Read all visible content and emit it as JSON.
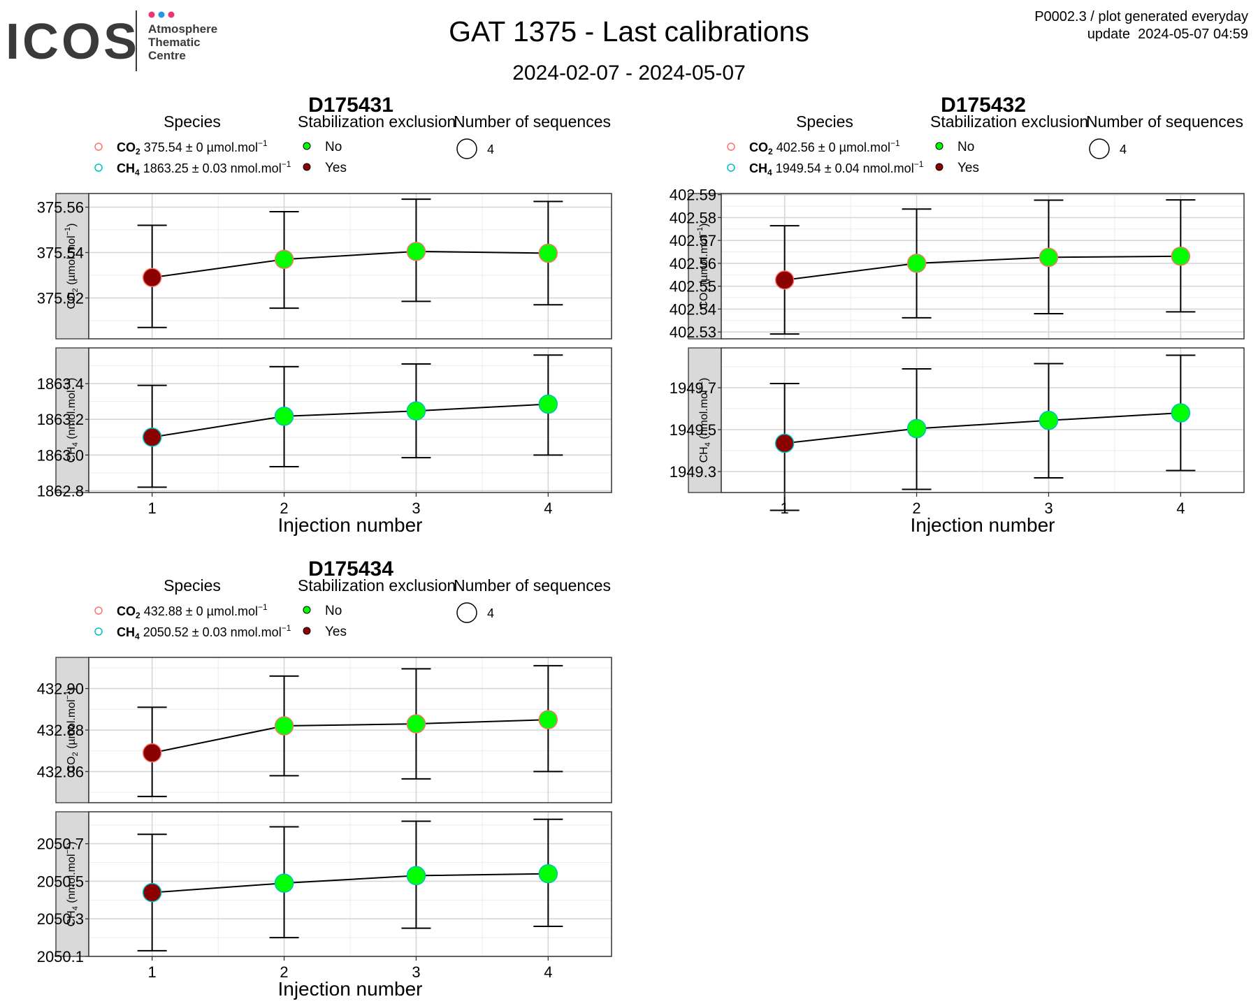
{
  "logo": {
    "wordmark": "ICOS",
    "line1": "Atmosphere",
    "line2": "Thematic",
    "line3": "Centre",
    "dot_colors": [
      "#e8386d",
      "#1e9be0",
      "#e8386d"
    ]
  },
  "header": {
    "title": "GAT 1375 - Last calibrations",
    "daterange": "2024-02-07 - 2024-05-07",
    "meta_line1": "P0002.3 / plot generated everyday",
    "meta_line2": "update  2024-05-07 04:59"
  },
  "legend_labels": {
    "species": "Species",
    "stab": "Stabilization exclusion",
    "nseq": "Number of sequences",
    "no": "No",
    "yes": "Yes",
    "nseq_value": "4"
  },
  "colors": {
    "co2_ring": "#f8766d",
    "ch4_ring": "#00bfc4",
    "no_fill": "#00ff00",
    "yes_fill": "#8b0000",
    "strip_bg": "#d9d9d9"
  },
  "chart_data": [
    {
      "type": "scatter",
      "title": "D175431",
      "xlabel": "Injection number",
      "x": [
        1,
        2,
        3,
        4
      ],
      "legend": {
        "co2_bold": "CO",
        "co2_text": "375.54 ± 0 µmol.mol",
        "ch4_bold": "CH",
        "ch4_text": "1863.25 ± 0.03 nmol.mol"
      },
      "panels": [
        {
          "species": "CO2",
          "strip": "CO",
          "strip_unit": "(µmol.mol",
          "ylim": [
            375.502,
            375.566
          ],
          "yticks": [
            375.52,
            375.54,
            375.56
          ],
          "ytick_labels": [
            "375.52",
            "375.54",
            "375.56"
          ],
          "values": [
            375.529,
            375.537,
            375.5405,
            375.5397
          ],
          "err_low": [
            375.507,
            375.5155,
            375.5185,
            375.517
          ],
          "err_high": [
            375.552,
            375.558,
            375.5635,
            375.5625
          ],
          "excluded": [
            true,
            false,
            false,
            false
          ]
        },
        {
          "species": "CH4",
          "strip": "CH",
          "strip_unit": "(nmol.mol",
          "ylim": [
            1862.79,
            1863.6
          ],
          "yticks": [
            1862.8,
            1863.0,
            1863.2,
            1863.4
          ],
          "ytick_labels": [
            "1862.8",
            "1863.0",
            "1863.2",
            "1863.4"
          ],
          "values": [
            1863.1,
            1863.217,
            1863.247,
            1863.285
          ],
          "err_low": [
            1862.82,
            1862.935,
            1862.985,
            1863.0
          ],
          "err_high": [
            1863.39,
            1863.495,
            1863.51,
            1863.56
          ],
          "excluded": [
            true,
            false,
            false,
            false
          ]
        }
      ]
    },
    {
      "type": "scatter",
      "title": "D175432",
      "xlabel": "Injection number",
      "x": [
        1,
        2,
        3,
        4
      ],
      "legend": {
        "co2_bold": "CO",
        "co2_text": "402.56 ± 0 µmol.mol",
        "ch4_bold": "CH",
        "ch4_text": "1949.54 ± 0.04 nmol.mol"
      },
      "panels": [
        {
          "species": "CO2",
          "strip": "CO",
          "strip_unit": "(µmol.mol",
          "ylim": [
            402.527,
            402.5905
          ],
          "yticks": [
            402.53,
            402.54,
            402.55,
            402.56,
            402.57,
            402.58,
            402.59
          ],
          "ytick_labels": [
            "402.53",
            "402.54",
            "402.55",
            "402.56",
            "402.57",
            "402.58",
            "402.59"
          ],
          "values": [
            402.5527,
            402.56,
            402.5626,
            402.5631
          ],
          "err_low": [
            402.5291,
            402.5362,
            402.538,
            402.5388
          ],
          "err_high": [
            402.5764,
            402.5837,
            402.5876,
            402.5877
          ],
          "excluded": [
            true,
            false,
            false,
            false
          ]
        },
        {
          "species": "CH4",
          "strip": "CH",
          "strip_unit": "(nmol.mol",
          "ylim": [
            1949.2,
            1949.89
          ],
          "yticks": [
            1949.3,
            1949.5,
            1949.7
          ],
          "ytick_labels": [
            "1949.3",
            "1949.5",
            "1949.7"
          ],
          "values": [
            1949.435,
            1949.505,
            1949.544,
            1949.58
          ],
          "err_low": [
            1949.115,
            1949.215,
            1949.27,
            1949.305
          ],
          "err_high": [
            1949.72,
            1949.79,
            1949.815,
            1949.855
          ],
          "excluded": [
            true,
            false,
            false,
            false
          ]
        }
      ]
    },
    {
      "type": "scatter",
      "title": "D175434",
      "xlabel": "Injection number",
      "x": [
        1,
        2,
        3,
        4
      ],
      "legend": {
        "co2_bold": "CO",
        "co2_text": "432.88 ± 0 µmol.mol",
        "ch4_bold": "CH",
        "ch4_text": "2050.52 ± 0.03 nmol.mol"
      },
      "panels": [
        {
          "species": "CO2",
          "strip": "CO",
          "strip_unit": "(µmol.mol",
          "ylim": [
            432.845,
            432.915
          ],
          "yticks": [
            432.86,
            432.88,
            432.9
          ],
          "ytick_labels": [
            "432.86",
            "432.88",
            "432.90"
          ],
          "values": [
            432.869,
            432.882,
            432.883,
            432.885
          ],
          "err_low": [
            432.848,
            432.858,
            432.8565,
            432.86
          ],
          "err_high": [
            432.891,
            432.906,
            432.9095,
            432.911
          ],
          "excluded": [
            true,
            false,
            false,
            false
          ]
        },
        {
          "species": "CH4",
          "strip": "CH",
          "strip_unit": "(nmol.mol",
          "ylim": [
            2050.1,
            2050.87
          ],
          "yticks": [
            2050.1,
            2050.3,
            2050.5,
            2050.7
          ],
          "ytick_labels": [
            "2050.1",
            "2050.3",
            "2050.5",
            "2050.7"
          ],
          "values": [
            2050.44,
            2050.49,
            2050.53,
            2050.54
          ],
          "err_low": [
            2050.13,
            2050.2,
            2050.25,
            2050.26
          ],
          "err_high": [
            2050.75,
            2050.79,
            2050.82,
            2050.83
          ],
          "excluded": [
            true,
            false,
            false,
            false
          ]
        }
      ]
    }
  ]
}
